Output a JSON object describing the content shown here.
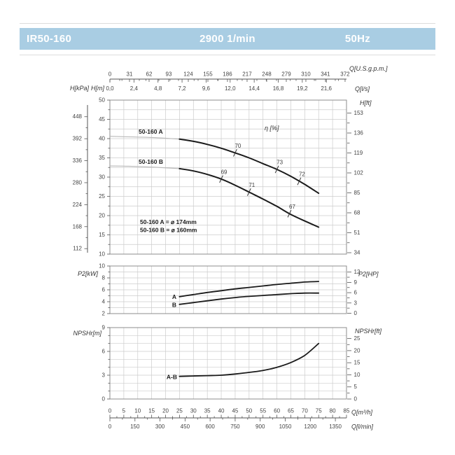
{
  "header": {
    "model": "IR50-160",
    "speed": "2900 1/min",
    "frequency": "50Hz"
  },
  "x_range": {
    "min": 0,
    "max": 85
  },
  "chart_data": [
    {
      "id": "head_flow",
      "type": "line",
      "title": "H-Q performance curves",
      "eta_label": "η [%]",
      "x_axes_top": {
        "gpm": {
          "label": "Q[U.S.g.p.m.]",
          "ticks": [
            0,
            31,
            62,
            93,
            124,
            155,
            186,
            217,
            248,
            279,
            310,
            341,
            372
          ],
          "gpm_per_m3h": 4.40287
        },
        "ls": {
          "label": "Q[l/s]",
          "tick_labels": [
            "0,0",
            "2,4",
            "4,8",
            "7,2",
            "9,6",
            "12,0",
            "14,4",
            "16,8",
            "19,2",
            "21,6"
          ],
          "tick_values": [
            0,
            2.4,
            4.8,
            7.2,
            9.6,
            12,
            14.4,
            16.8,
            19.2,
            21.6
          ],
          "m3h_per_unit": 3.6
        }
      },
      "y_left": {
        "label": "H[m]",
        "ticks": [
          50,
          45,
          40,
          35,
          30,
          25,
          20,
          15,
          10
        ],
        "min": 10,
        "max": 50,
        "minor_step": 2.5
      },
      "y_left_outer": {
        "label": "H[kPa]",
        "ticks": [
          448,
          392,
          336,
          280,
          224,
          168,
          112
        ],
        "m_per_unit": 0.101972
      },
      "y_right": {
        "label": "H[ft]",
        "ticks": [
          153,
          136,
          119,
          102,
          85,
          68,
          51,
          34
        ],
        "m_per_unit": 0.3048
      },
      "series": [
        {
          "name": "50-160 A",
          "solid_from_q": 25,
          "points": [
            [
              0,
              40.6
            ],
            [
              5,
              40.5
            ],
            [
              10,
              40.4
            ],
            [
              15,
              40.3
            ],
            [
              20,
              40.1
            ],
            [
              25,
              39.85
            ],
            [
              30,
              39.3
            ],
            [
              35,
              38.5
            ],
            [
              40,
              37.5
            ],
            [
              45,
              36.3
            ],
            [
              50,
              35.0
            ],
            [
              55,
              33.5
            ],
            [
              60,
              32.0
            ],
            [
              65,
              30.2
            ],
            [
              70,
              28.1
            ],
            [
              75,
              25.8
            ]
          ],
          "efficiency_markers": [
            {
              "eff": "70",
              "q": 45,
              "h": 36.3
            },
            {
              "eff": "73",
              "q": 60,
              "h": 32.0
            },
            {
              "eff": "72",
              "q": 68,
              "h": 28.9
            }
          ]
        },
        {
          "name": "50-160 B",
          "solid_from_q": 25,
          "points": [
            [
              0,
              32.9
            ],
            [
              5,
              32.85
            ],
            [
              10,
              32.75
            ],
            [
              15,
              32.6
            ],
            [
              20,
              32.4
            ],
            [
              25,
              32.2
            ],
            [
              30,
              31.6
            ],
            [
              35,
              30.7
            ],
            [
              40,
              29.5
            ],
            [
              45,
              27.9
            ],
            [
              50,
              26.1
            ],
            [
              55,
              24.3
            ],
            [
              60,
              22.4
            ],
            [
              65,
              20.3
            ],
            [
              70,
              18.6
            ],
            [
              75,
              17.0
            ]
          ],
          "efficiency_markers": [
            {
              "eff": "69",
              "q": 40,
              "h": 29.5
            },
            {
              "eff": "71",
              "q": 50,
              "h": 26.1
            },
            {
              "eff": "67",
              "q": 64.5,
              "h": 20.5
            }
          ]
        }
      ],
      "impeller_notes": [
        "50-160 A = ⌀ 174mm",
        "50-160 B = ⌀ 160mm"
      ]
    },
    {
      "id": "power",
      "type": "line",
      "title": "P2 power curves",
      "y_left": {
        "label": "P2[kW]",
        "ticks": [
          10,
          8,
          6,
          4,
          2
        ],
        "min": 2,
        "max": 10,
        "minor_ticks": [
          9,
          7,
          5,
          3
        ]
      },
      "y_right": {
        "label": "P2[HP]",
        "ticks": [
          12,
          9,
          6,
          3,
          0
        ],
        "minor_ticks": [
          10.5,
          7.5,
          4.5,
          1.5
        ]
      },
      "series": [
        {
          "name": "A",
          "points": [
            [
              25,
              4.85
            ],
            [
              30,
              5.2
            ],
            [
              35,
              5.55
            ],
            [
              40,
              5.85
            ],
            [
              45,
              6.15
            ],
            [
              50,
              6.4
            ],
            [
              55,
              6.65
            ],
            [
              60,
              6.9
            ],
            [
              65,
              7.1
            ],
            [
              70,
              7.3
            ],
            [
              75,
              7.4
            ]
          ]
        },
        {
          "name": "B",
          "points": [
            [
              25,
              3.55
            ],
            [
              30,
              3.85
            ],
            [
              35,
              4.15
            ],
            [
              40,
              4.45
            ],
            [
              45,
              4.7
            ],
            [
              50,
              4.9
            ],
            [
              55,
              5.05
            ],
            [
              60,
              5.2
            ],
            [
              65,
              5.35
            ],
            [
              70,
              5.45
            ],
            [
              75,
              5.45
            ]
          ]
        }
      ]
    },
    {
      "id": "npshr",
      "type": "line",
      "title": "NPSHr curve",
      "y_left": {
        "label": "NPSHr[m]",
        "ticks": [
          9,
          6,
          3,
          0
        ],
        "min": 0,
        "max": 9,
        "minor_ticks": [
          8,
          7,
          5,
          4,
          2,
          1
        ]
      },
      "y_right": {
        "label": "NPSHr[ft]",
        "ticks": [
          25,
          20,
          15,
          10,
          5,
          0
        ],
        "m_per_unit": 0.3048,
        "minor_ticks": [
          22.5,
          17.5,
          12.5,
          7.5,
          2.5
        ]
      },
      "series": [
        {
          "name": "A-B",
          "points": [
            [
              25,
              2.85
            ],
            [
              30,
              2.9
            ],
            [
              35,
              2.95
            ],
            [
              40,
              3.0
            ],
            [
              45,
              3.15
            ],
            [
              50,
              3.35
            ],
            [
              55,
              3.6
            ],
            [
              60,
              4.0
            ],
            [
              65,
              4.6
            ],
            [
              70,
              5.5
            ],
            [
              75,
              7.0
            ]
          ]
        }
      ],
      "x_axes_bottom": {
        "m3h": {
          "label": "Q[m³/h]",
          "ticks": [
            0,
            5,
            10,
            15,
            20,
            25,
            30,
            35,
            40,
            45,
            50,
            55,
            60,
            65,
            70,
            75,
            80,
            85
          ]
        },
        "lmin": {
          "label": "Q[l/min]",
          "ticks": [
            0,
            150,
            300,
            450,
            600,
            750,
            900,
            1050,
            1200,
            1350
          ],
          "lmin_per_m3h": 16.6667
        }
      }
    }
  ]
}
